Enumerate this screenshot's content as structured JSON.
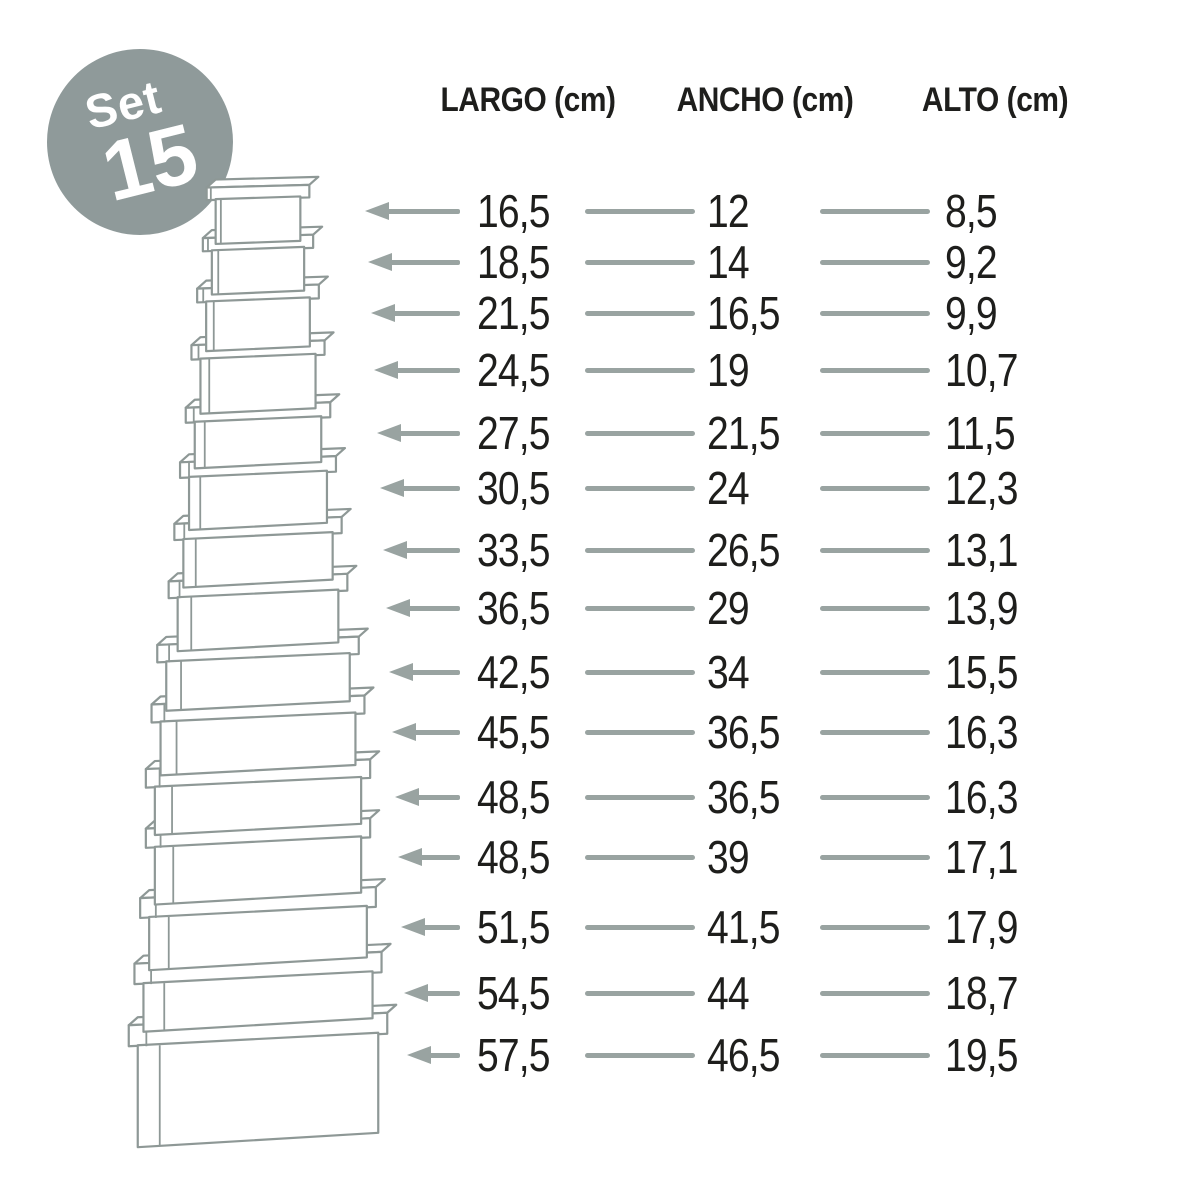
{
  "badge": {
    "line1": "Set",
    "line2": "15"
  },
  "table": {
    "headers": [
      "LARGO (cm)",
      "ANCHO (cm)",
      "ALTO (cm)"
    ],
    "rows": [
      {
        "largo": "16,5",
        "ancho": "12",
        "alto": "8,5"
      },
      {
        "largo": "18,5",
        "ancho": "14",
        "alto": "9,2"
      },
      {
        "largo": "21,5",
        "ancho": "16,5",
        "alto": "9,9"
      },
      {
        "largo": "24,5",
        "ancho": "19",
        "alto": "10,7"
      },
      {
        "largo": "27,5",
        "ancho": "21,5",
        "alto": "11,5"
      },
      {
        "largo": "30,5",
        "ancho": "24",
        "alto": "12,3"
      },
      {
        "largo": "33,5",
        "ancho": "26,5",
        "alto": "13,1"
      },
      {
        "largo": "36,5",
        "ancho": "29",
        "alto": "13,9"
      },
      {
        "largo": "42,5",
        "ancho": "34",
        "alto": "15,5"
      },
      {
        "largo": "45,5",
        "ancho": "36,5",
        "alto": "16,3"
      },
      {
        "largo": "48,5",
        "ancho": "36,5",
        "alto": "16,3"
      },
      {
        "largo": "48,5",
        "ancho": "39",
        "alto": "17,1"
      },
      {
        "largo": "51,5",
        "ancho": "41,5",
        "alto": "17,9"
      },
      {
        "largo": "54,5",
        "ancho": "44",
        "alto": "18,7"
      },
      {
        "largo": "57,5",
        "ancho": "46,5",
        "alto": "19,5"
      }
    ]
  },
  "colors": {
    "accent": "#8f9a9a",
    "line_gray": "#99a3a1",
    "box_stroke": "#8e9896",
    "text": "#1e1e1c"
  }
}
